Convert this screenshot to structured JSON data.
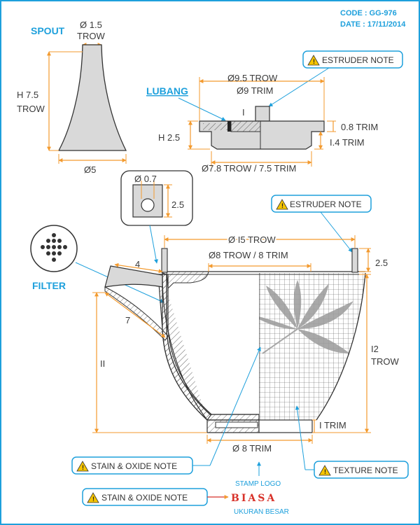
{
  "header": {
    "code": "CODE : GG-976",
    "date": "DATE : 17/11/2014"
  },
  "spout": {
    "title": "SPOUT",
    "top_dia_line1": "Ø 1.5",
    "top_dia_line2": "TROW",
    "height_line1": "H 7.5",
    "height_line2": "TROW",
    "base_dia": "Ø5"
  },
  "lid": {
    "estruder_note": "ESTRUDER NOTE",
    "lubang": "LUBANG",
    "top_dia_line1": "Ø9.5 TROW",
    "top_dia_line2": "Ø9 TRIM",
    "knob": "I",
    "height": "H 2.5",
    "rim_thickness": "0.8 TRIM",
    "flange_height": "I.4 TRIM",
    "bottom_dia": "Ø7.8 TROW / 7.5 TRIM"
  },
  "filter_detail": {
    "hole_dia": "Ø 0.7",
    "height": "2.5",
    "label": "FILTER"
  },
  "pot": {
    "estruder_note": "ESTRUDER NOTE",
    "top_dia": "Ø I5 TROW",
    "inner_dia": "Ø8 TROW / 8 TRIM",
    "rim_height": "2.5",
    "spout_top": "4",
    "spout_length": "7",
    "height_left": "II",
    "height_right_line1": "I2",
    "height_right_line2": "TROW",
    "foot_height": "I TRIM",
    "base_dia": "Ø 8 TRIM",
    "stain_note_1": "STAIN & OXIDE NOTE",
    "texture_note": "TEXTURE NOTE",
    "stain_note_2": "STAIN & OXIDE NOTE"
  },
  "stamp": {
    "label": "STAMP LOGO",
    "logo": "BIASA",
    "caption": "UKURAN BESAR"
  },
  "colors": {
    "accent": "#1ea0dc",
    "dimension": "#f39a2e",
    "outline": "#333333",
    "fill": "#d9d9d9",
    "warning": "#f5c400",
    "stamp": "#d8322a"
  },
  "icons": [
    "warning-icon",
    "leaf-icon"
  ]
}
